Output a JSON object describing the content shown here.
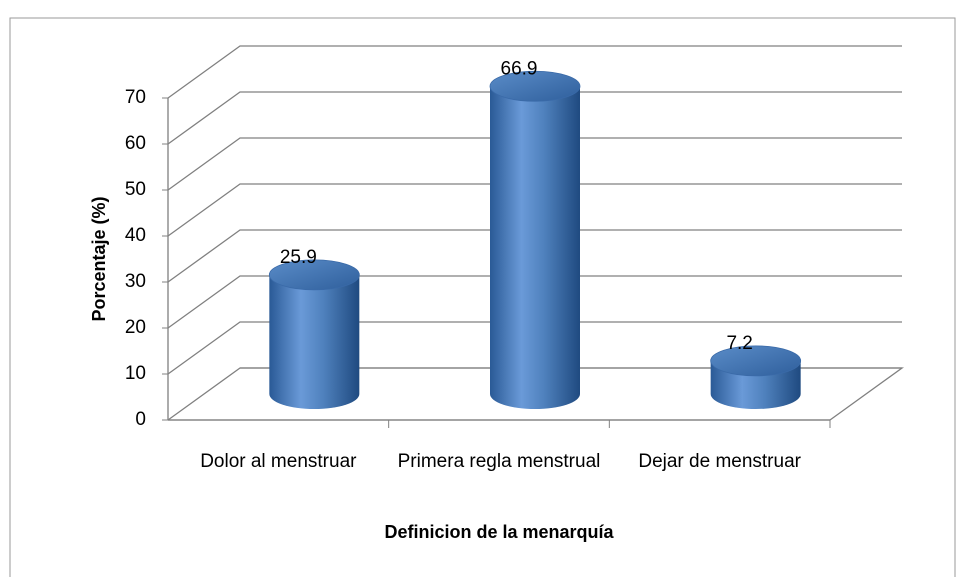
{
  "chart_data": {
    "type": "bar3d",
    "categories": [
      "Dolor al menstruar",
      "Primera regla menstrual",
      "Dejar de menstruar"
    ],
    "values": [
      25.9,
      66.9,
      7.2
    ],
    "color": "#4f81bd",
    "x_label": "Definicion de la menarquía",
    "y_label": "Porcentaje (%)",
    "ylim": [
      0,
      70
    ],
    "yticks": [
      0,
      10,
      20,
      30,
      40,
      50,
      60,
      70
    ],
    "grid": true
  }
}
